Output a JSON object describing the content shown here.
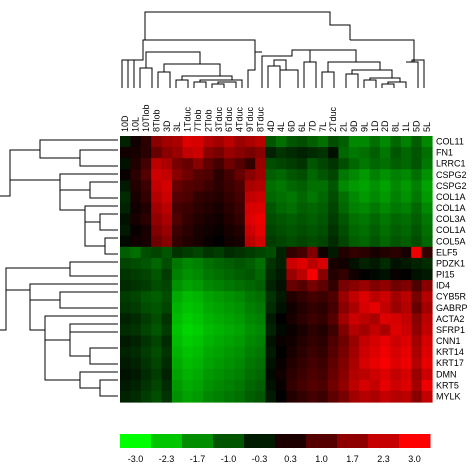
{
  "chart_data": {
    "type": "heatmap",
    "columns": [
      "10D",
      "10L",
      "10Tlob",
      "8Tlob",
      "3D",
      "3L",
      "1Tduc",
      "7Tlob",
      "2Tlob",
      "3Tduc",
      "6Tduc",
      "4Tduc",
      "9Tduc",
      "8Tduc",
      "4D",
      "4L",
      "6D",
      "6L",
      "7D",
      "7L",
      "2Tduc",
      "2L",
      "9D",
      "9L",
      "1D",
      "2D",
      "8L",
      "1L",
      "5D",
      "5L"
    ],
    "rows": [
      "COL11",
      "FN1",
      "LRRC1",
      "CSPG2",
      "CSPG2",
      "COL1A",
      "COL1A",
      "COL3A",
      "COL1A",
      "COL5A",
      "ELF5",
      "PDZK1",
      "PI15",
      "ID4",
      "CYB5R",
      "GABRP",
      "ACTA2",
      "SFRP1",
      "CNN1",
      "KRT14",
      "KRT17",
      "DMN",
      "KRT5",
      "MYLK"
    ],
    "color_scale": {
      "ticks": [
        "-3.0",
        "-2.3",
        "-1.7",
        "-1.0",
        "-0.3",
        "0.3",
        "1.0",
        "1.7",
        "2.3",
        "3.0"
      ],
      "min": -3.0,
      "max": 3.0,
      "low_color": "#00ff00",
      "mid_color": "#000000",
      "high_color": "#ff0000"
    },
    "values": [
      [
        -0.4,
        0.2,
        0.5,
        1.6,
        1.9,
        2.0,
        2.6,
        2.5,
        2.1,
        1.9,
        2.2,
        1.8,
        2.0,
        2.2,
        -1.0,
        -1.3,
        -1.0,
        -0.9,
        -1.1,
        -1.3,
        -0.9,
        -1.1,
        -1.6,
        -1.6,
        -1.3,
        -1.6,
        -1.2,
        -1.5,
        -1.1,
        -1.6
      ],
      [
        0.2,
        0.3,
        0.5,
        1.2,
        1.6,
        1.8,
        2.3,
        2.4,
        1.6,
        1.4,
        1.8,
        1.6,
        1.4,
        1.6,
        -0.4,
        -0.6,
        -0.5,
        -0.4,
        -0.5,
        -0.6,
        -0.2,
        -1.2,
        -1.4,
        -1.3,
        -1.1,
        -1.4,
        -1.0,
        -1.2,
        -1.0,
        -1.3
      ],
      [
        -0.2,
        0.4,
        0.8,
        2.2,
        2.0,
        1.4,
        1.2,
        1.6,
        1.1,
        0.8,
        1.3,
        1.0,
        0.6,
        1.8,
        -0.9,
        -0.8,
        -0.7,
        -0.6,
        -1.0,
        -0.8,
        -0.6,
        -0.9,
        -1.2,
        -1.4,
        -1.2,
        -1.3,
        -1.1,
        -1.2,
        -1.0,
        -1.4
      ],
      [
        0.1,
        0.5,
        1.0,
        2.4,
        2.3,
        1.6,
        1.3,
        1.0,
        0.9,
        0.5,
        0.8,
        1.2,
        1.6,
        1.9,
        -1.1,
        -1.2,
        -1.0,
        -0.9,
        -1.2,
        -1.0,
        -0.8,
        -1.4,
        -1.6,
        -1.8,
        -1.5,
        -1.7,
        -1.5,
        -1.6,
        -1.3,
        -1.7
      ],
      [
        -0.3,
        0.4,
        0.7,
        2.3,
        2.5,
        1.2,
        1.0,
        0.9,
        0.7,
        0.5,
        0.7,
        0.9,
        2.0,
        2.1,
        -1.3,
        -1.4,
        -1.2,
        -1.1,
        -1.3,
        -1.3,
        -1.0,
        -1.6,
        -1.8,
        -1.9,
        -1.7,
        -1.9,
        -1.6,
        -1.8,
        -1.5,
        -1.9
      ],
      [
        -0.5,
        0.3,
        0.6,
        2.1,
        2.4,
        1.0,
        0.9,
        0.6,
        0.5,
        0.4,
        0.6,
        0.8,
        2.3,
        2.4,
        -1.2,
        -1.3,
        -1.4,
        -1.2,
        -1.4,
        -1.2,
        -0.9,
        -1.3,
        -1.6,
        -1.8,
        -1.6,
        -1.8,
        -1.5,
        -1.7,
        -1.4,
        -1.8
      ],
      [
        -0.4,
        0.2,
        0.4,
        1.9,
        2.2,
        0.8,
        0.7,
        0.5,
        0.4,
        0.3,
        0.5,
        0.7,
        2.5,
        2.6,
        -1.0,
        -1.2,
        -1.3,
        -1.1,
        -1.2,
        -1.1,
        -0.8,
        -1.2,
        -1.5,
        -1.6,
        -1.4,
        -1.6,
        -1.4,
        -1.5,
        -1.2,
        -1.6
      ],
      [
        -0.2,
        0.3,
        0.5,
        1.7,
        2.0,
        0.9,
        0.6,
        0.4,
        0.3,
        0.2,
        0.4,
        0.6,
        2.6,
        2.8,
        -0.9,
        -1.0,
        -1.1,
        -1.0,
        -1.1,
        -1.0,
        -0.7,
        -1.0,
        -1.3,
        -1.4,
        -1.2,
        -1.4,
        -1.2,
        -1.3,
        -1.1,
        -1.4
      ],
      [
        -0.3,
        0.1,
        0.3,
        1.5,
        1.8,
        0.7,
        0.5,
        0.3,
        0.2,
        0.1,
        0.3,
        0.4,
        2.4,
        2.7,
        -0.8,
        -0.9,
        -1.0,
        -0.9,
        -1.0,
        -0.9,
        -0.6,
        -0.9,
        -1.2,
        -1.3,
        -1.1,
        -1.3,
        -1.1,
        -1.2,
        -1.0,
        -1.3
      ],
      [
        -0.1,
        0.2,
        0.3,
        1.3,
        1.6,
        0.6,
        0.4,
        0.3,
        0.1,
        0.0,
        0.2,
        0.3,
        2.2,
        2.5,
        -0.7,
        -0.8,
        -0.9,
        -0.8,
        -0.9,
        -0.8,
        -0.5,
        -0.8,
        -1.1,
        -1.2,
        -1.0,
        -1.2,
        -1.0,
        -1.1,
        -0.9,
        -1.2
      ],
      [
        -1.1,
        -1.3,
        -0.9,
        -0.8,
        -1.0,
        -0.6,
        -0.7,
        -0.8,
        -0.6,
        -0.7,
        -0.5,
        -0.6,
        -0.7,
        -0.8,
        -0.9,
        -0.4,
        0.6,
        0.8,
        1.5,
        0.2,
        -0.3,
        0.4,
        0.6,
        0.5,
        0.3,
        0.4,
        0.5,
        0.3,
        2.8,
        0.6
      ],
      [
        -0.8,
        -0.9,
        -1.0,
        -1.2,
        -0.9,
        -1.4,
        -1.6,
        -1.5,
        -1.3,
        -1.2,
        -1.1,
        -1.0,
        -1.1,
        -1.3,
        -0.6,
        -0.4,
        2.4,
        2.6,
        2.2,
        2.5,
        0.3,
        0.2,
        -0.2,
        -0.4,
        -0.3,
        -0.5,
        -0.2,
        -0.3,
        -0.4,
        -0.5
      ],
      [
        -0.6,
        -0.7,
        -0.8,
        -1.0,
        -0.7,
        -1.5,
        -1.7,
        -1.6,
        -1.4,
        -1.3,
        -1.2,
        -1.1,
        -1.0,
        -1.2,
        -0.5,
        -0.3,
        1.8,
        2.2,
        2.9,
        1.6,
        0.4,
        0.6,
        0.2,
        0.0,
        -0.1,
        -0.2,
        0.1,
        0.0,
        -0.2,
        -0.3
      ],
      [
        -0.5,
        -0.6,
        -0.7,
        -0.9,
        -0.8,
        -1.7,
        -1.9,
        -1.8,
        -1.6,
        -1.5,
        -1.4,
        -1.3,
        -1.2,
        -1.1,
        -0.4,
        -0.2,
        1.2,
        1.0,
        1.4,
        1.1,
        0.6,
        1.4,
        1.6,
        1.8,
        1.5,
        1.7,
        1.3,
        1.5,
        0.9,
        1.6
      ],
      [
        -0.7,
        -0.8,
        -1.0,
        -1.1,
        -0.9,
        -2.0,
        -2.2,
        -2.1,
        -1.9,
        -1.8,
        -1.7,
        -1.6,
        -1.4,
        -1.3,
        -0.6,
        -0.3,
        0.4,
        0.6,
        0.8,
        0.7,
        0.9,
        1.8,
        2.3,
        2.6,
        2.2,
        2.4,
        1.9,
        2.2,
        1.4,
        2.1
      ],
      [
        -0.6,
        -0.7,
        -0.9,
        -1.0,
        -0.8,
        -2.1,
        -2.3,
        -2.2,
        -2.0,
        -1.9,
        -1.8,
        -1.7,
        -1.5,
        -1.4,
        -0.5,
        -0.2,
        0.2,
        0.4,
        0.6,
        0.5,
        0.8,
        1.6,
        2.0,
        2.5,
        2.7,
        2.3,
        1.8,
        2.1,
        1.2,
        1.9
      ],
      [
        -0.4,
        -0.5,
        -0.7,
        -0.9,
        -0.6,
        -2.2,
        -2.4,
        -2.3,
        -2.1,
        -2.0,
        -1.9,
        -1.8,
        -1.6,
        -1.5,
        -0.3,
        0.0,
        0.3,
        0.5,
        0.7,
        0.6,
        1.0,
        1.9,
        2.4,
        2.2,
        2.0,
        2.6,
        2.5,
        2.3,
        1.6,
        2.2
      ],
      [
        -0.5,
        -0.6,
        -0.8,
        -1.0,
        -0.7,
        -2.3,
        -2.5,
        -2.4,
        -2.2,
        -2.1,
        -2.0,
        -1.9,
        -1.7,
        -1.6,
        -0.4,
        -0.1,
        0.1,
        0.3,
        0.5,
        0.4,
        0.7,
        1.5,
        2.1,
        1.9,
        2.3,
        2.0,
        2.6,
        2.4,
        1.7,
        2.3
      ],
      [
        -0.3,
        -0.4,
        -0.6,
        -0.8,
        -0.5,
        -2.2,
        -2.4,
        -2.3,
        -2.1,
        -2.0,
        -1.9,
        -1.8,
        -1.6,
        -1.5,
        -0.2,
        0.1,
        0.2,
        0.4,
        0.6,
        0.5,
        0.9,
        1.3,
        1.8,
        2.3,
        2.5,
        2.7,
        2.4,
        2.6,
        1.9,
        2.5
      ],
      [
        -0.4,
        -0.5,
        -0.7,
        -0.9,
        -0.6,
        -2.1,
        -2.3,
        -2.2,
        -2.0,
        -1.9,
        -1.8,
        -1.7,
        -1.5,
        -1.4,
        -0.3,
        0.0,
        0.3,
        0.5,
        0.7,
        0.6,
        1.0,
        1.4,
        1.9,
        2.4,
        2.6,
        2.8,
        2.5,
        2.7,
        2.0,
        2.6
      ],
      [
        -0.3,
        -0.4,
        -0.6,
        -0.8,
        -0.5,
        -2.0,
        -2.2,
        -2.1,
        -1.9,
        -1.8,
        -1.7,
        -1.6,
        -1.4,
        -1.3,
        -0.2,
        0.1,
        0.4,
        0.6,
        0.8,
        0.7,
        1.1,
        1.5,
        2.0,
        2.5,
        2.7,
        2.9,
        2.6,
        2.8,
        2.1,
        2.7
      ],
      [
        -0.2,
        -0.3,
        -0.5,
        -0.7,
        -0.4,
        -1.9,
        -2.1,
        -2.0,
        -1.8,
        -1.7,
        -1.6,
        -1.5,
        -1.3,
        -1.2,
        -0.1,
        0.2,
        0.5,
        0.7,
        0.9,
        0.8,
        1.2,
        1.6,
        2.1,
        2.2,
        2.4,
        2.6,
        2.3,
        2.5,
        1.8,
        2.4
      ],
      [
        -0.3,
        -0.4,
        -0.6,
        -0.8,
        -0.5,
        -1.8,
        -2.0,
        -1.9,
        -1.7,
        -1.6,
        -1.5,
        -1.4,
        -1.2,
        -1.1,
        -0.2,
        0.1,
        0.6,
        0.8,
        1.0,
        0.9,
        1.3,
        1.7,
        2.2,
        2.5,
        2.3,
        2.7,
        2.4,
        2.6,
        1.9,
        2.8
      ],
      [
        -0.4,
        -0.5,
        -0.7,
        -0.9,
        -0.6,
        -1.7,
        -1.9,
        -1.8,
        -1.6,
        -1.5,
        -1.4,
        -1.3,
        -1.1,
        -1.0,
        -0.3,
        0.0,
        0.4,
        0.6,
        0.8,
        0.7,
        1.1,
        1.4,
        1.9,
        2.1,
        2.0,
        2.3,
        2.1,
        2.2,
        1.6,
        2.3
      ]
    ]
  }
}
